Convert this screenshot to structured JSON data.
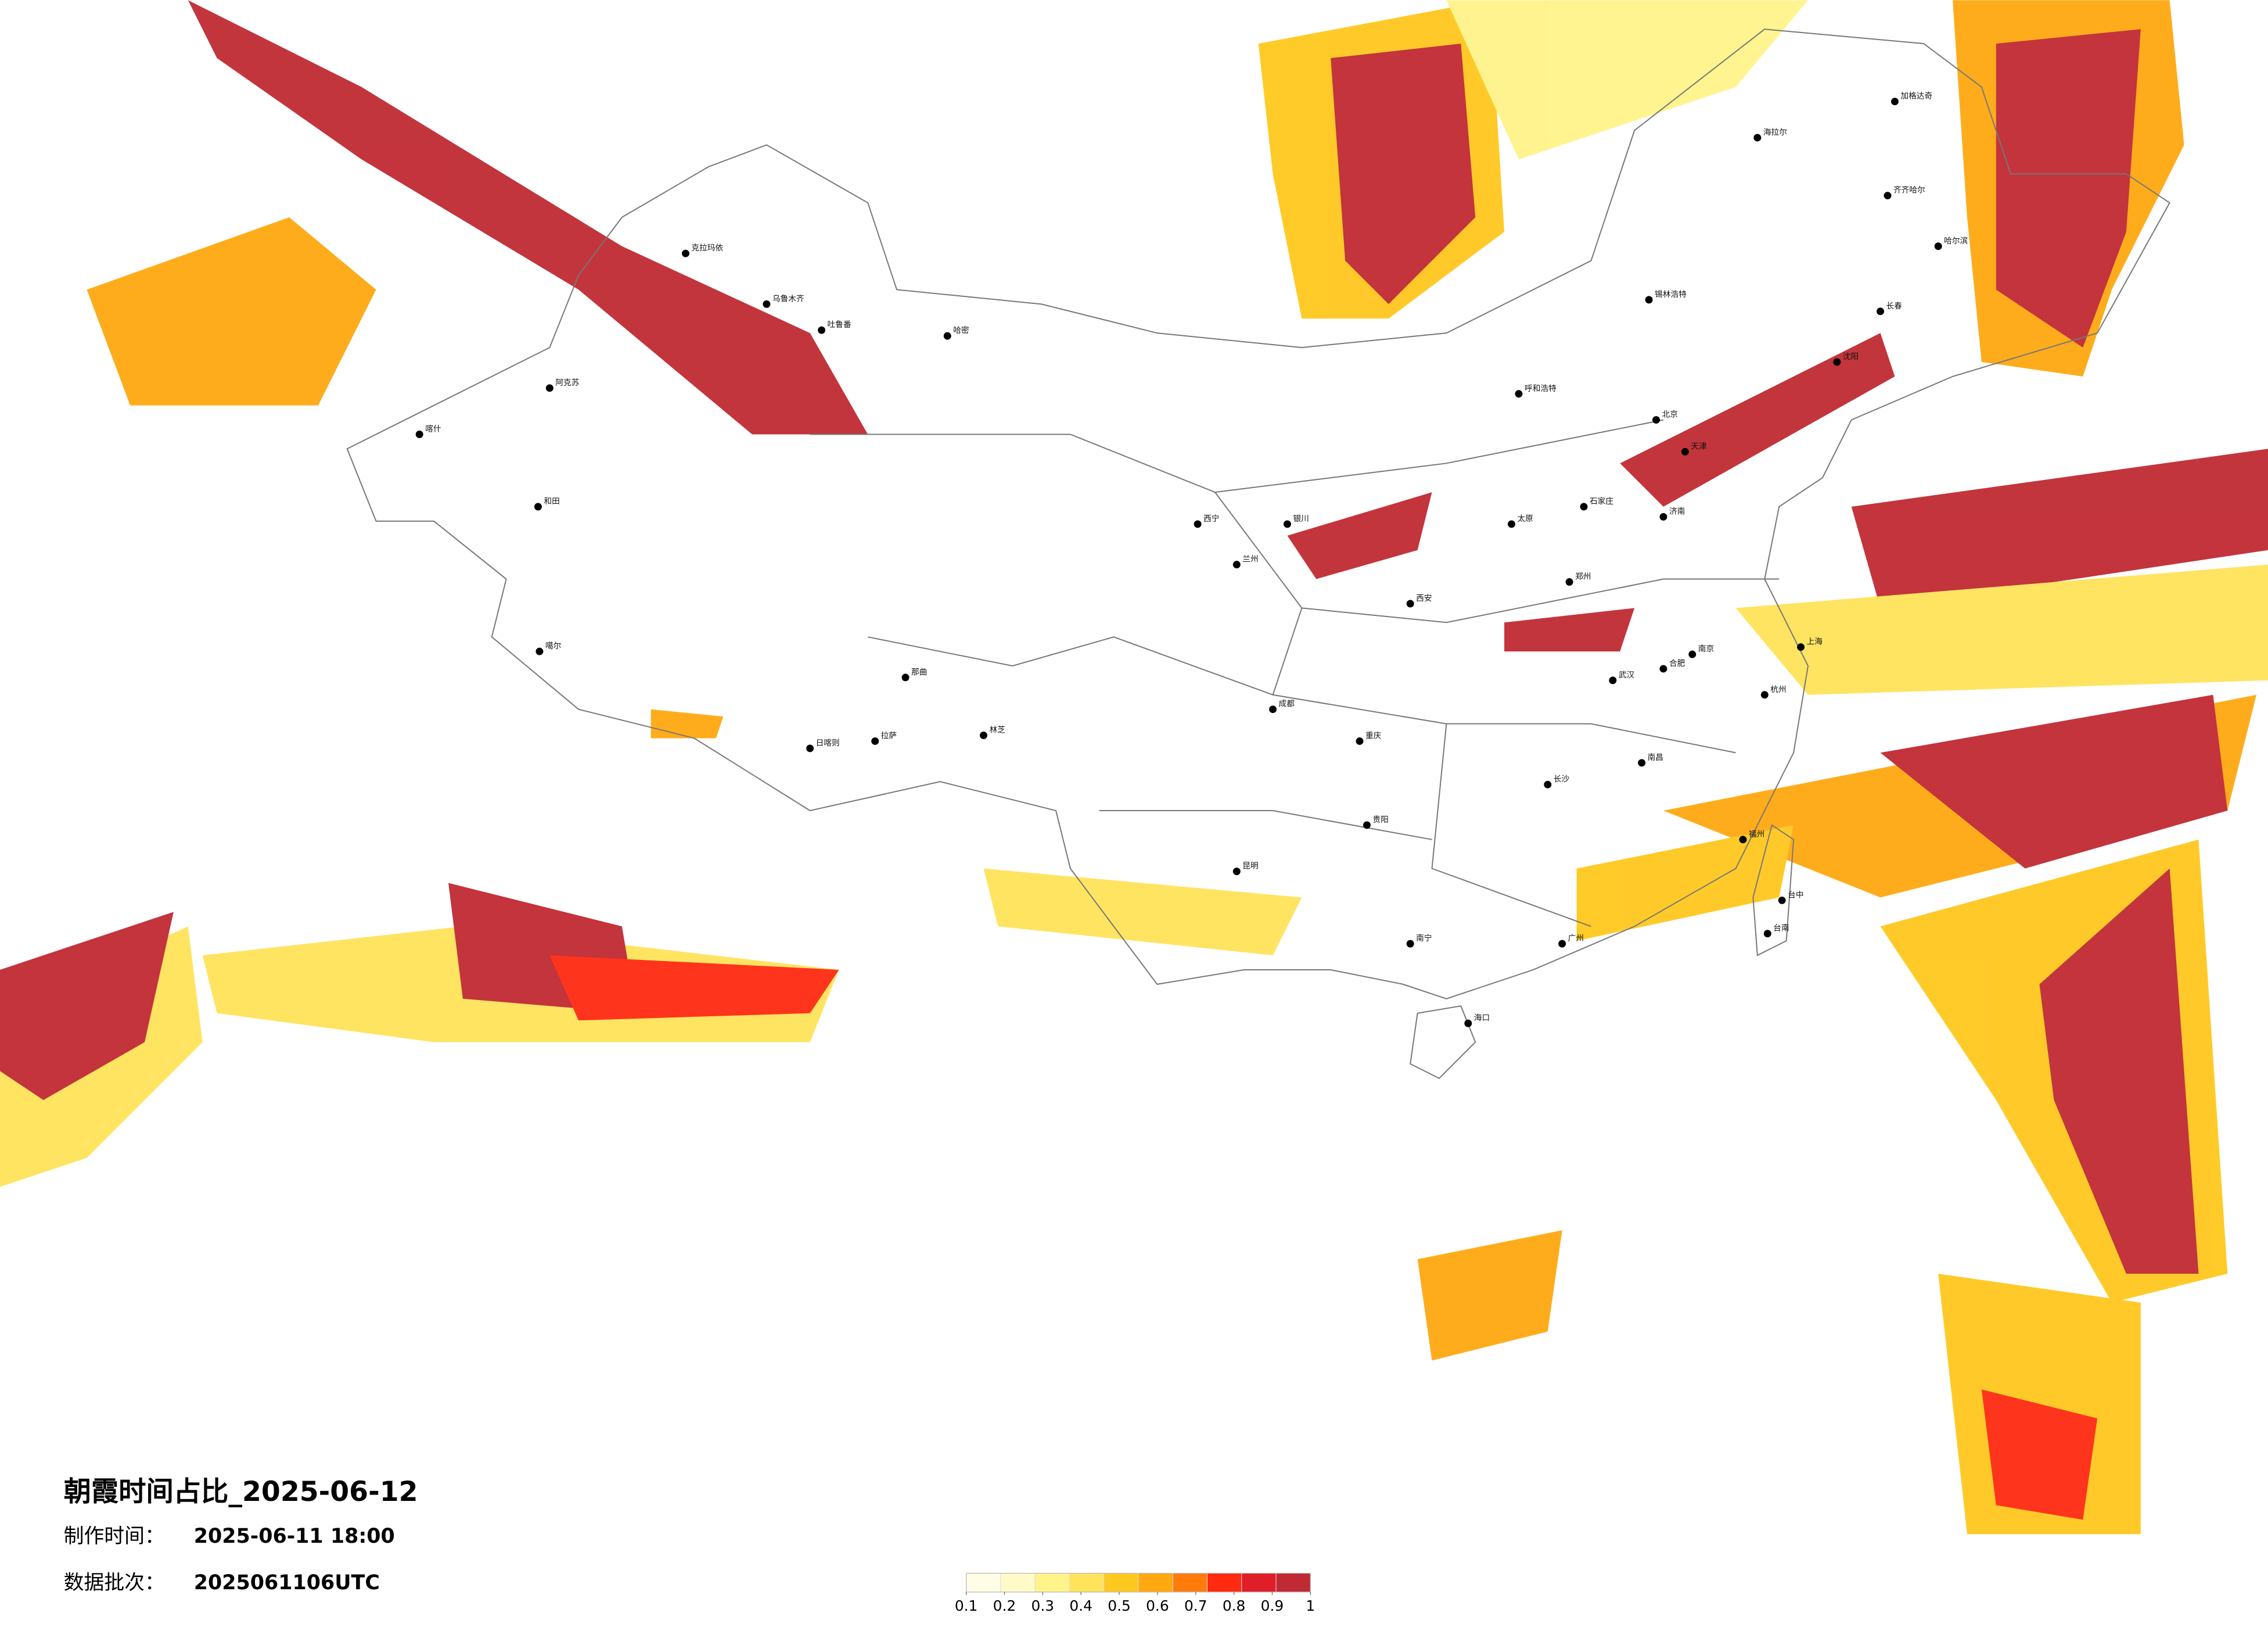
{
  "title": "朝霞时间占比_2025-06-12",
  "production_label": "制作时间：",
  "production_time": "2025-06-11 18:00",
  "batch_label": "数据批次：",
  "batch": "2025061106UTC",
  "legend": {
    "colors": [
      "#fffde6",
      "#fffac8",
      "#fff38a",
      "#ffe35a",
      "#ffc81e",
      "#ffa810",
      "#ff7c0a",
      "#ff2a10",
      "#e01e28",
      "#c02a32"
    ],
    "ticks": [
      0.1,
      0.2,
      0.3,
      0.4,
      0.5,
      0.6,
      0.7,
      0.8,
      0.9,
      1
    ]
  },
  "cities": [
    "克拉玛依",
    "乌鲁木齐",
    "吐鲁番",
    "哈密",
    "阿克苏",
    "喀什",
    "和田",
    "噶尔",
    "拉萨",
    "日喀则",
    "林芝",
    "那曲",
    "西宁",
    "兰州",
    "银川",
    "呼和浩特",
    "北京",
    "天津",
    "石家庄",
    "太原",
    "济南",
    "郑州",
    "西安",
    "成都",
    "重庆",
    "贵阳",
    "昆明",
    "南宁",
    "广州",
    "长沙",
    "武汉",
    "南昌",
    "福州",
    "杭州",
    "南京",
    "上海",
    "合肥",
    "海口",
    "台中",
    "台南",
    "哈尔滨",
    "长春",
    "沈阳",
    "齐齐哈尔",
    "海拉尔",
    "锡林浩特",
    "加格达奇"
  ]
}
